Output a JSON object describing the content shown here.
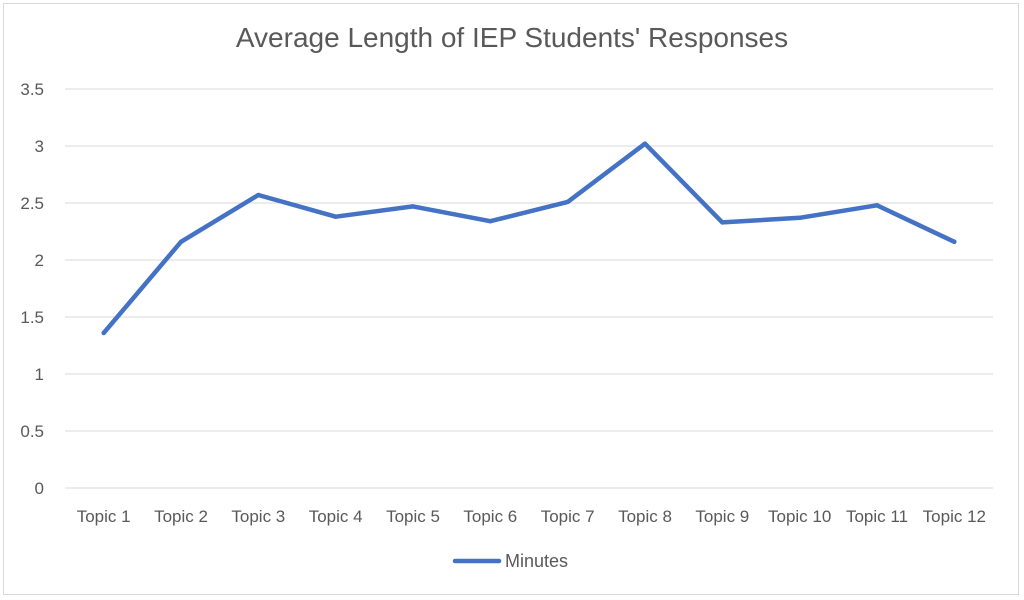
{
  "chart_data": {
    "type": "line",
    "title": "Average Length of IEP Students' Responses",
    "xlabel": "",
    "ylabel": "",
    "categories": [
      "Topic 1",
      "Topic 2",
      "Topic 3",
      "Topic 4",
      "Topic 5",
      "Topic 6",
      "Topic 7",
      "Topic 8",
      "Topic 9",
      "Topic 10",
      "Topic 11",
      "Topic 12"
    ],
    "series": [
      {
        "name": "Minutes",
        "values": [
          1.36,
          2.16,
          2.57,
          2.38,
          2.47,
          2.34,
          2.51,
          3.02,
          2.33,
          2.37,
          2.48,
          2.16
        ],
        "color": "#4472c4"
      }
    ],
    "ylim": [
      0,
      3.5
    ],
    "yticks": [
      "0",
      "0.5",
      "1",
      "1.5",
      "2",
      "2.5",
      "3",
      "3.5"
    ],
    "grid": true,
    "legend_position": "bottom"
  }
}
